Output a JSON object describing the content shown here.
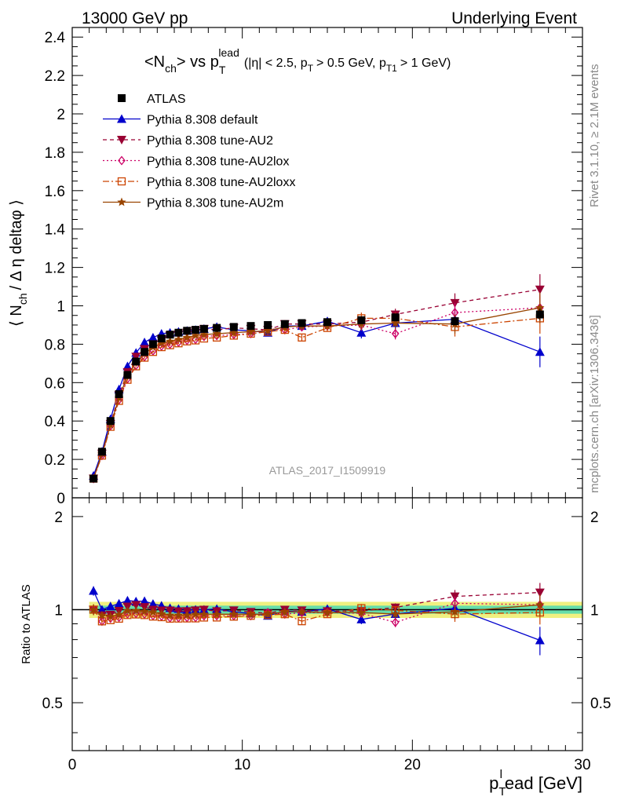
{
  "header": {
    "left": "13000 GeV pp",
    "right": "Underlying Event"
  },
  "side_labels": {
    "rivet": "Rivet 3.1.10, ≥ 2.1M events",
    "mcplots": "mcplots.cern.ch [arXiv:1306.3436]"
  },
  "watermark": "ATLAS_2017_I1509919",
  "chart_data": [
    {
      "type": "line",
      "panel": "main",
      "title": "<N_ch> vs p_T^lead (|η| < 2.5, p_T > 0.5 GeV, p_T1 > 1 GeV)",
      "title_parts": {
        "a": "<N",
        "a_sub": "ch",
        "b": "> vs p",
        "b_sub": "T",
        "b_sup": "lead",
        "c": "(|η| < 2.5, p",
        "c_sub": "T",
        "d": "> 0.5 GeV, p",
        "d_sub": "T1",
        "e": "> 1 GeV)"
      },
      "ylabel": "⟨ N_ch / Δη deltaφ ⟩",
      "ylabel_parts": {
        "a": "⟨ N",
        "sub": "ch",
        "b": "/ Δ η deltaφ ⟩"
      },
      "xlim": [
        0,
        30
      ],
      "ylim": [
        0,
        2.45
      ],
      "y_ticks": [
        "0",
        "0.2",
        "0.4",
        "0.6",
        "0.8",
        "1",
        "1.2",
        "1.4",
        "1.6",
        "1.8",
        "2",
        "2.2",
        "2.4"
      ],
      "y_tick_values": [
        0,
        0.2,
        0.4,
        0.6,
        0.8,
        1.0,
        1.2,
        1.4,
        1.6,
        1.8,
        2.0,
        2.2,
        2.4
      ],
      "legend_position": "top-left",
      "x": [
        1.25,
        1.75,
        2.25,
        2.75,
        3.25,
        3.75,
        4.25,
        4.75,
        5.25,
        5.75,
        6.25,
        6.75,
        7.25,
        7.75,
        8.5,
        9.5,
        10.5,
        11.5,
        12.5,
        13.5,
        15,
        17,
        19,
        22.5,
        27.5
      ],
      "series": [
        {
          "name": "ATLAS",
          "color": "#000000",
          "marker": "square",
          "dash": "none",
          "values": [
            0.1,
            0.24,
            0.4,
            0.54,
            0.64,
            0.71,
            0.76,
            0.8,
            0.83,
            0.85,
            0.86,
            0.87,
            0.875,
            0.88,
            0.885,
            0.89,
            0.895,
            0.9,
            0.905,
            0.91,
            0.915,
            0.925,
            0.94,
            0.92,
            0.955
          ],
          "errors": [
            0.005,
            0.005,
            0.005,
            0.005,
            0.005,
            0.005,
            0.005,
            0.005,
            0.005,
            0.005,
            0.005,
            0.005,
            0.005,
            0.005,
            0.005,
            0.005,
            0.006,
            0.007,
            0.008,
            0.009,
            0.01,
            0.012,
            0.015,
            0.02,
            0.03
          ]
        },
        {
          "name": "Pythia 8.308 default",
          "color": "#0000cc",
          "marker": "triangle-up",
          "dash": "none",
          "values": [
            0.115,
            0.24,
            0.41,
            0.565,
            0.685,
            0.755,
            0.81,
            0.835,
            0.855,
            0.86,
            0.865,
            0.87,
            0.875,
            0.88,
            0.89,
            0.875,
            0.87,
            0.86,
            0.895,
            0.895,
            0.92,
            0.86,
            0.91,
            0.93,
            0.76
          ],
          "errors": [
            0.004,
            0.004,
            0.004,
            0.004,
            0.004,
            0.004,
            0.004,
            0.004,
            0.004,
            0.004,
            0.005,
            0.005,
            0.005,
            0.006,
            0.007,
            0.009,
            0.012,
            0.015,
            0.02,
            0.02,
            0.02,
            0.03,
            0.03,
            0.05,
            0.08
          ]
        },
        {
          "name": "Pythia 8.308 tune-AU2",
          "color": "#990033",
          "marker": "triangle-down",
          "dash": "5,4",
          "values": [
            0.1,
            0.23,
            0.385,
            0.535,
            0.655,
            0.735,
            0.775,
            0.8,
            0.825,
            0.845,
            0.85,
            0.86,
            0.87,
            0.88,
            0.875,
            0.885,
            0.88,
            0.875,
            0.905,
            0.905,
            0.905,
            0.915,
            0.955,
            1.015,
            1.085
          ],
          "errors": [
            0.004,
            0.004,
            0.004,
            0.004,
            0.004,
            0.004,
            0.004,
            0.004,
            0.004,
            0.004,
            0.005,
            0.005,
            0.005,
            0.006,
            0.007,
            0.009,
            0.012,
            0.015,
            0.02,
            0.02,
            0.02,
            0.03,
            0.03,
            0.05,
            0.08
          ]
        },
        {
          "name": "Pythia 8.308 tune-AU2lox",
          "color": "#cc0066",
          "marker": "diamond-open",
          "dash": "2,3",
          "values": [
            0.1,
            0.22,
            0.375,
            0.51,
            0.62,
            0.69,
            0.735,
            0.765,
            0.79,
            0.8,
            0.81,
            0.82,
            0.825,
            0.84,
            0.845,
            0.85,
            0.855,
            0.88,
            0.875,
            0.89,
            0.895,
            0.9,
            0.855,
            0.965,
            0.99
          ],
          "errors": [
            0.004,
            0.004,
            0.004,
            0.004,
            0.004,
            0.004,
            0.004,
            0.004,
            0.004,
            0.004,
            0.005,
            0.005,
            0.005,
            0.006,
            0.007,
            0.009,
            0.012,
            0.015,
            0.02,
            0.02,
            0.02,
            0.03,
            0.03,
            0.05,
            0.08
          ]
        },
        {
          "name": "Pythia 8.308 tune-AU2loxx",
          "color": "#cc4400",
          "marker": "square-open",
          "dash": "8,3,2,3",
          "values": [
            0.1,
            0.22,
            0.37,
            0.505,
            0.615,
            0.685,
            0.73,
            0.76,
            0.785,
            0.795,
            0.805,
            0.815,
            0.82,
            0.83,
            0.835,
            0.845,
            0.855,
            0.865,
            0.875,
            0.835,
            0.885,
            0.935,
            0.935,
            0.89,
            0.935
          ],
          "errors": [
            0.004,
            0.004,
            0.004,
            0.004,
            0.004,
            0.004,
            0.004,
            0.004,
            0.004,
            0.004,
            0.005,
            0.005,
            0.005,
            0.006,
            0.007,
            0.009,
            0.012,
            0.015,
            0.02,
            0.02,
            0.02,
            0.03,
            0.03,
            0.05,
            0.08
          ]
        },
        {
          "name": "Pythia 8.308 tune-AU2m",
          "color": "#994400",
          "marker": "star",
          "dash": "none",
          "values": [
            0.1,
            0.23,
            0.38,
            0.52,
            0.635,
            0.705,
            0.75,
            0.785,
            0.805,
            0.815,
            0.825,
            0.835,
            0.845,
            0.85,
            0.855,
            0.86,
            0.865,
            0.87,
            0.89,
            0.895,
            0.895,
            0.905,
            0.91,
            0.905,
            0.99
          ],
          "errors": [
            0.004,
            0.004,
            0.004,
            0.004,
            0.004,
            0.004,
            0.004,
            0.004,
            0.004,
            0.004,
            0.005,
            0.005,
            0.005,
            0.006,
            0.007,
            0.009,
            0.012,
            0.015,
            0.02,
            0.02,
            0.02,
            0.03,
            0.03,
            0.05,
            0.08
          ]
        }
      ]
    },
    {
      "type": "line",
      "panel": "ratio",
      "ylabel": "Ratio to ATLAS",
      "xlabel": "p_T^l ead [GeV]",
      "xlabel_parts": {
        "a": "p",
        "sub": "T",
        "sup": "l",
        "b": "ead [GeV]"
      },
      "xlim": [
        0,
        30
      ],
      "ylim": [
        0.35,
        2.3
      ],
      "log_y": true,
      "x_ticks": [
        "0",
        "10",
        "20",
        "30"
      ],
      "x_tick_values": [
        0,
        10,
        20,
        30
      ],
      "y_ticks": [
        "0.5",
        "1",
        "2"
      ],
      "y_tick_values": [
        0.5,
        1,
        2
      ],
      "uncertainty_band": {
        "inner": 0.03,
        "outer": 0.06,
        "inner_color": "#66ddaa",
        "outer_color": "#f0f080"
      }
    }
  ]
}
